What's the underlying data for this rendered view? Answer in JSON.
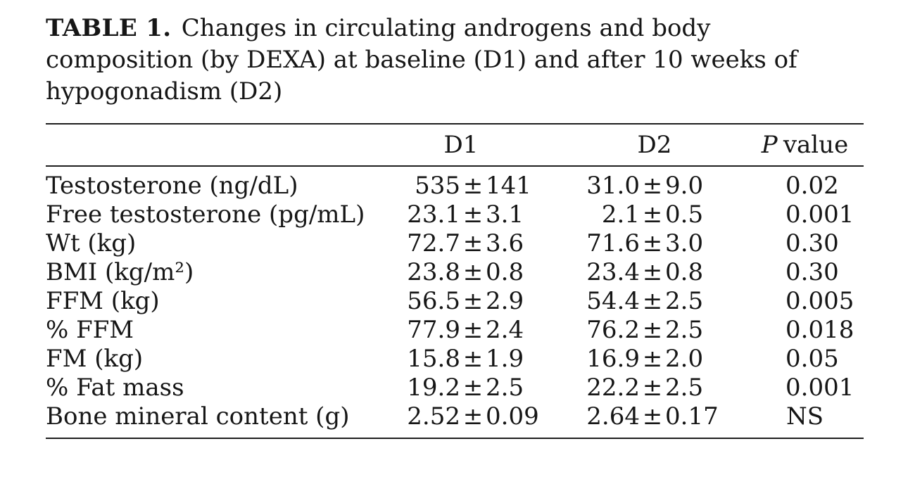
{
  "caption": {
    "label": "TABLE 1.",
    "line1_rest": "Changes in circulating androgens and body",
    "line2": "composition (by DEXA) at baseline (D1) and after 10 weeks of",
    "line3": "hypogonadism (D2)"
  },
  "table": {
    "pm_symbol": "±",
    "columns": {
      "stub": "",
      "d1": "D1",
      "d2": "D2",
      "p_italic": "P",
      "p_rest": "value"
    },
    "rows": [
      {
        "label": "Testosterone (ng/dL)",
        "d1": "535 ± 141",
        "d2": "31.0 ± 9.0",
        "p": "0.02"
      },
      {
        "label": "Free testosterone (pg/mL)",
        "d1": "23.1 ± 3.1",
        "d2": "2.1 ± 0.5",
        "p": "0.001"
      },
      {
        "label": "Wt (kg)",
        "d1": "72.7 ± 3.6",
        "d2": "71.6 ± 3.0",
        "p": "0.30"
      },
      {
        "label": "BMI (kg/m²)",
        "d1": "23.8 ± 0.8",
        "d2": "23.4 ± 0.8",
        "p": "0.30"
      },
      {
        "label": "FFM (kg)",
        "d1": "56.5 ± 2.9",
        "d2": "54.4 ± 2.5",
        "p": "0.005"
      },
      {
        "label": "% FFM",
        "d1": "77.9 ± 2.4",
        "d2": "76.2 ± 2.5",
        "p": "0.018"
      },
      {
        "label": "FM (kg)",
        "d1": "15.8 ± 1.9",
        "d2": "16.9 ± 2.0",
        "p": "0.05"
      },
      {
        "label": "% Fat mass",
        "d1": "19.2 ± 2.5",
        "d2": "22.2 ± 2.5",
        "p": "0.001"
      },
      {
        "label": "Bone mineral content (g)",
        "d1": "2.52 ± 0.09",
        "d2": "2.64 ± 0.17",
        "p": "NS"
      }
    ]
  },
  "colors": {
    "text": "#161616",
    "rule": "#1e1e1e",
    "background": "#ffffff"
  }
}
